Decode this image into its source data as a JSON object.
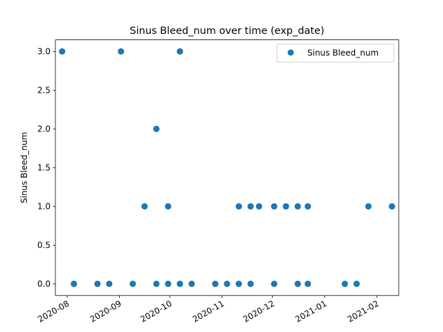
{
  "chart_data": {
    "type": "scatter",
    "title": "Sinus Bleed_num over time (exp_date)",
    "xlabel": "",
    "ylabel": "Sinus Bleed_num",
    "xlim": [
      "2020-07-25",
      "2021-02-14"
    ],
    "ylim": [
      -0.15,
      3.15
    ],
    "x_ticks": [
      "2020-08",
      "2020-09",
      "2020-10",
      "2020-11",
      "2020-12",
      "2021-01",
      "2021-02"
    ],
    "y_ticks": [
      "0.0",
      "0.5",
      "1.0",
      "1.5",
      "2.0",
      "2.5",
      "3.0"
    ],
    "legend": {
      "placement": "upper right",
      "entries": [
        "Sinus Bleed_num"
      ]
    },
    "grid": false,
    "colors": {
      "marker": "#1f77b4"
    },
    "series": [
      {
        "name": "Sinus Bleed_num",
        "points": [
          {
            "x": "2020-07-29",
            "y": 3
          },
          {
            "x": "2020-08-05",
            "y": 0
          },
          {
            "x": "2020-08-19",
            "y": 0
          },
          {
            "x": "2020-08-26",
            "y": 0
          },
          {
            "x": "2020-09-02",
            "y": 3
          },
          {
            "x": "2020-09-09",
            "y": 0
          },
          {
            "x": "2020-09-16",
            "y": 1
          },
          {
            "x": "2020-09-23",
            "y": 2
          },
          {
            "x": "2020-09-23",
            "y": 0
          },
          {
            "x": "2020-09-30",
            "y": 1
          },
          {
            "x": "2020-09-30",
            "y": 0
          },
          {
            "x": "2020-10-07",
            "y": 3
          },
          {
            "x": "2020-10-07",
            "y": 0
          },
          {
            "x": "2020-10-14",
            "y": 0
          },
          {
            "x": "2020-10-28",
            "y": 0
          },
          {
            "x": "2020-11-04",
            "y": 0
          },
          {
            "x": "2020-11-11",
            "y": 1
          },
          {
            "x": "2020-11-11",
            "y": 0
          },
          {
            "x": "2020-11-18",
            "y": 1
          },
          {
            "x": "2020-11-18",
            "y": 0
          },
          {
            "x": "2020-11-23",
            "y": 1
          },
          {
            "x": "2020-12-02",
            "y": 1
          },
          {
            "x": "2020-12-02",
            "y": 0
          },
          {
            "x": "2020-12-09",
            "y": 1
          },
          {
            "x": "2020-12-16",
            "y": 1
          },
          {
            "x": "2020-12-16",
            "y": 0
          },
          {
            "x": "2020-12-22",
            "y": 1
          },
          {
            "x": "2020-12-22",
            "y": 0
          },
          {
            "x": "2021-01-13",
            "y": 0
          },
          {
            "x": "2021-01-20",
            "y": 0
          },
          {
            "x": "2021-01-27",
            "y": 1
          },
          {
            "x": "2021-02-10",
            "y": 1
          }
        ]
      }
    ]
  }
}
